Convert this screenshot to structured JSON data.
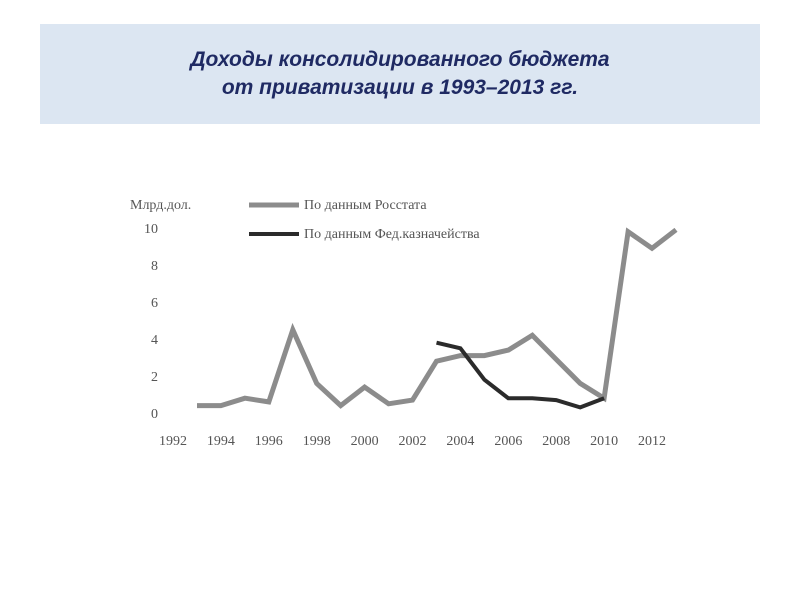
{
  "header": {
    "title_line1": "Доходы консолидированного бюджета",
    "title_line2": "от приватизации в 1993–2013 гг."
  },
  "chart_data": {
    "type": "line",
    "ylabel": "Млрд.дол.",
    "xlim": [
      1992,
      2013
    ],
    "ylim": [
      0,
      10
    ],
    "x_ticks": [
      "1992",
      "1994",
      "1996",
      "1998",
      "2000",
      "2002",
      "2004",
      "2006",
      "2008",
      "2010",
      "2012"
    ],
    "y_ticks": [
      "0",
      "2",
      "4",
      "6",
      "8",
      "10"
    ],
    "grid": false,
    "legend_position": "top",
    "series": [
      {
        "name": "По данным Росстата",
        "color": "#8c8c8c",
        "points": [
          [
            1993,
            0.4
          ],
          [
            1994,
            0.4
          ],
          [
            1995,
            0.8
          ],
          [
            1996,
            0.6
          ],
          [
            1997,
            4.5
          ],
          [
            1998,
            1.6
          ],
          [
            1999,
            0.4
          ],
          [
            2000,
            1.4
          ],
          [
            2001,
            0.5
          ],
          [
            2002,
            0.7
          ],
          [
            2003,
            2.8
          ],
          [
            2004,
            3.1
          ],
          [
            2005,
            3.1
          ],
          [
            2006,
            3.4
          ],
          [
            2007,
            4.2
          ],
          [
            2008,
            2.9
          ],
          [
            2009,
            1.6
          ],
          [
            2010,
            0.8
          ],
          [
            2011,
            9.8
          ],
          [
            2012,
            8.9
          ],
          [
            2013,
            9.9
          ]
        ]
      },
      {
        "name": "По данным Фед.казначейства",
        "color": "#2b2b2b",
        "points": [
          [
            2003,
            3.8
          ],
          [
            2004,
            3.5
          ],
          [
            2005,
            1.8
          ],
          [
            2006,
            0.8
          ],
          [
            2007,
            0.8
          ],
          [
            2008,
            0.7
          ],
          [
            2009,
            0.3
          ],
          [
            2010,
            0.8
          ]
        ]
      }
    ]
  }
}
